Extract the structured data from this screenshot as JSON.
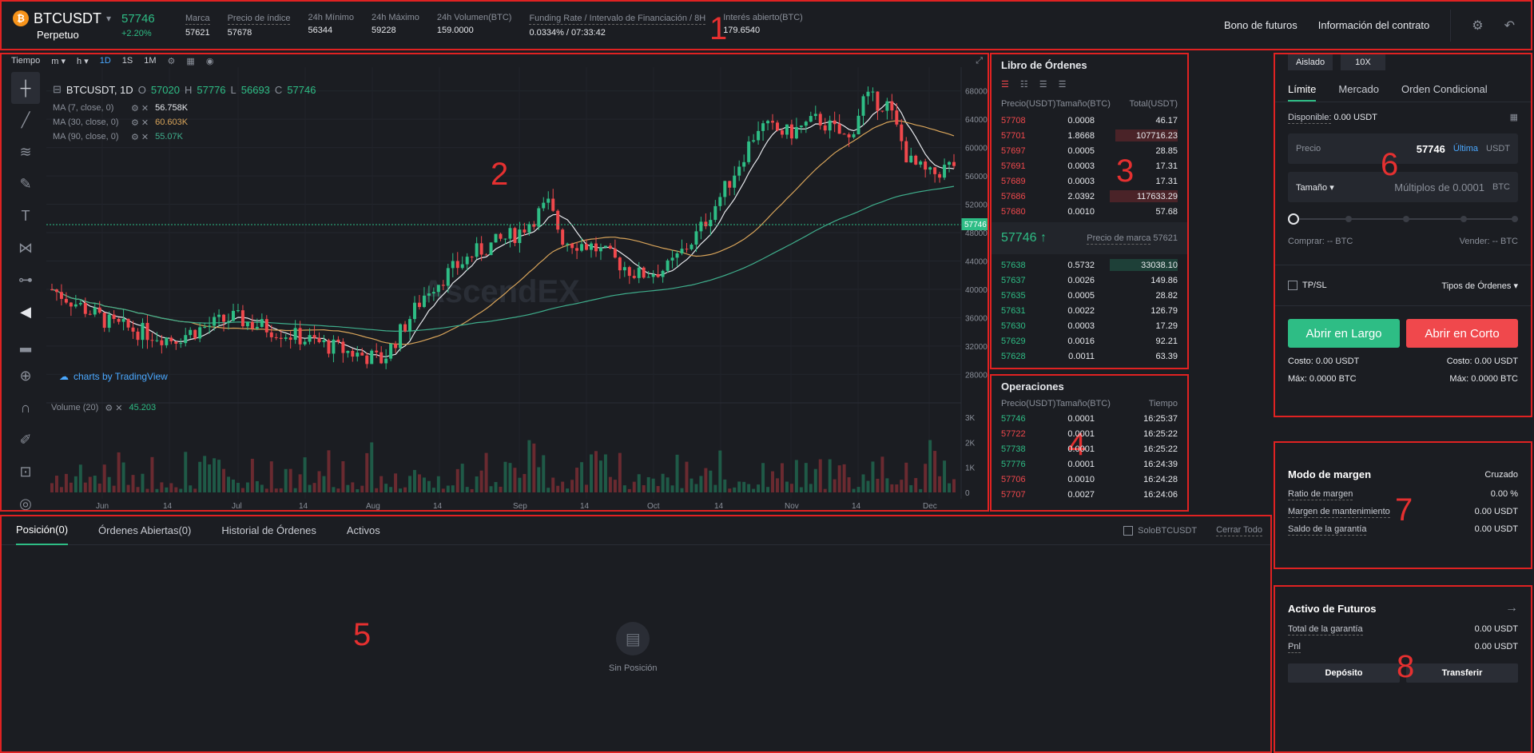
{
  "header": {
    "symbol": "BTCUSDT",
    "symbol_type": "Perpetuo",
    "coin_glyph": "₿",
    "last_price": "57746",
    "change": "+2.20%",
    "stats": [
      {
        "label": "Marca",
        "value": "57621"
      },
      {
        "label": "Precio de índice",
        "value": "57678"
      },
      {
        "label": "24h Mínimo",
        "value": "56344"
      },
      {
        "label": "24h Máximo",
        "value": "59228"
      },
      {
        "label": "24h Volumen(BTC)",
        "value": "159.0000"
      },
      {
        "label": "Funding Rate / Intervalo de Financiación / 8H",
        "value": "0.0334% / 07:33:42"
      },
      {
        "label": "Interés abierto(BTC)",
        "value": "179.6540"
      }
    ],
    "links": [
      "Bono de futuros",
      "Información del contrato"
    ]
  },
  "annotations": [
    "1",
    "2",
    "3",
    "4",
    "5",
    "6",
    "7",
    "8"
  ],
  "chart": {
    "toolbar_top": [
      "Tiempo",
      "m",
      "h",
      "1D",
      "1S",
      "1M"
    ],
    "legend_symbol": "BTCUSDT, 1D",
    "ohlc": {
      "o": "57020",
      "h": "57776",
      "l": "56693",
      "c": "57746"
    },
    "ma": [
      {
        "label": "MA (7, close, 0)",
        "value": "56.758K",
        "color": "#e6e8ec"
      },
      {
        "label": "MA (30, close, 0)",
        "value": "60.603K",
        "color": "#d8a45a"
      },
      {
        "label": "MA (90, close, 0)",
        "value": "55.07K",
        "color": "#3fae8c"
      }
    ],
    "watermark": "AscendEX",
    "tradingview": "charts by TradingView",
    "volume_label": "Volume (20)",
    "volume_value": "45.203",
    "price_ticks": [
      "68000",
      "64000",
      "60000",
      "56000",
      "52000",
      "48000",
      "44000",
      "40000",
      "36000",
      "32000",
      "28000"
    ],
    "vol_ticks": [
      "3K",
      "2K",
      "1K",
      "0"
    ],
    "x_ticks": [
      "Jun",
      "14",
      "Jul",
      "14",
      "Aug",
      "14",
      "Sep",
      "14",
      "Oct",
      "14",
      "Nov",
      "14",
      "Dec"
    ],
    "last_price_tag": "57746"
  },
  "order_book": {
    "title": "Libro de Órdenes",
    "headers": [
      "Precio(USDT)",
      "Tamaño(BTC)",
      "Total(USDT)"
    ],
    "asks": [
      [
        "57708",
        "0.0008",
        "46.17"
      ],
      [
        "57701",
        "1.8668",
        "107716.23"
      ],
      [
        "57697",
        "0.0005",
        "28.85"
      ],
      [
        "57691",
        "0.0003",
        "17.31"
      ],
      [
        "57689",
        "0.0003",
        "17.31"
      ],
      [
        "57686",
        "2.0392",
        "117633.29"
      ],
      [
        "57680",
        "0.0010",
        "57.68"
      ]
    ],
    "mid_price": "57746 ↑",
    "mark_label": "Precio de marca",
    "mark_value": "57621",
    "bids": [
      [
        "57638",
        "0.5732",
        "33038.10"
      ],
      [
        "57637",
        "0.0026",
        "149.86"
      ],
      [
        "57635",
        "0.0005",
        "28.82"
      ],
      [
        "57631",
        "0.0022",
        "126.79"
      ],
      [
        "57630",
        "0.0003",
        "17.29"
      ],
      [
        "57629",
        "0.0016",
        "92.21"
      ],
      [
        "57628",
        "0.0011",
        "63.39"
      ]
    ]
  },
  "trades": {
    "title": "Operaciones",
    "headers": [
      "Precio(USDT)",
      "Tamaño(BTC)",
      "Tiempo"
    ],
    "rows": [
      {
        "p": "57746",
        "s": "0.0001",
        "t": "16:25:37",
        "side": "buy"
      },
      {
        "p": "57722",
        "s": "0.0001",
        "t": "16:25:22",
        "side": "sell"
      },
      {
        "p": "57738",
        "s": "0.0001",
        "t": "16:25:22",
        "side": "buy"
      },
      {
        "p": "57776",
        "s": "0.0001",
        "t": "16:24:39",
        "side": "buy"
      },
      {
        "p": "57706",
        "s": "0.0010",
        "t": "16:24:28",
        "side": "sell"
      },
      {
        "p": "57707",
        "s": "0.0027",
        "t": "16:24:06",
        "side": "sell"
      }
    ]
  },
  "positions": {
    "tabs": [
      "Posición(0)",
      "Órdenes Abiertas(0)",
      "Historial de Órdenes",
      "Activos"
    ],
    "only_label": "SoloBTCUSDT",
    "close_all": "Cerrar Todo",
    "empty": "Sin Posición"
  },
  "order_form": {
    "margin_mode": "Aislado",
    "leverage": "10X",
    "tabs": [
      "Límite",
      "Mercado",
      "Orden Condicional"
    ],
    "available_label": "Disponible:",
    "available_value": "0.00 USDT",
    "price_label": "Precio",
    "price_value": "57746",
    "price_last": "Última",
    "price_unit": "USDT",
    "size_label": "Tamaño ▾",
    "size_placeholder": "Múltiplos de 0.0001",
    "size_unit": "BTC",
    "buy_label": "Comprar: -- BTC",
    "sell_label": "Vender: -- BTC",
    "tpsl": "TP/SL",
    "order_types": "Tipos de Órdenes ▾",
    "long_button": "Abrir en Largo",
    "short_button": "Abrir en Corto",
    "cost_long": "Costo: 0.00 USDT",
    "cost_short": "Costo: 0.00 USDT",
    "max_long": "Máx: 0.0000 BTC",
    "max_short": "Máx: 0.0000 BTC",
    "long_color": "#2ebd85",
    "short_color": "#f0484c"
  },
  "margin": {
    "title": "Modo de margen",
    "mode": "Cruzado",
    "rows": [
      {
        "label": "Ratio de margen",
        "value": "0.00 %"
      },
      {
        "label": "Margen de mantenimiento",
        "value": "0.00 USDT"
      },
      {
        "label": "Saldo de la garantía",
        "value": "0.00 USDT"
      }
    ]
  },
  "futures_assets": {
    "title": "Activo de Futuros",
    "rows": [
      {
        "label": "Total de la garantía",
        "value": "0.00 USDT"
      },
      {
        "label": "Pnl",
        "value": "0.00 USDT"
      }
    ],
    "deposit": "Depósito",
    "transfer": "Transferir"
  }
}
